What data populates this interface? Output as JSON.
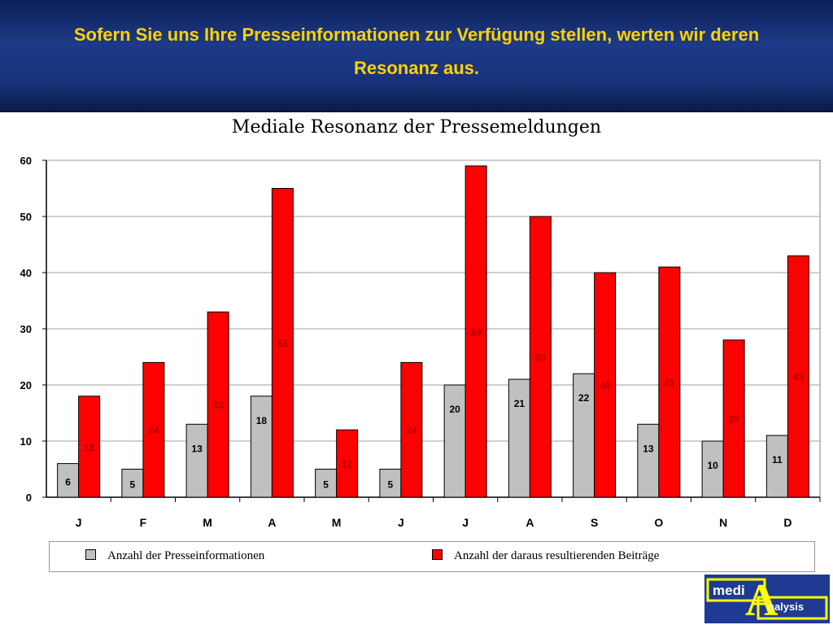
{
  "header": {
    "title": "Sofern Sie uns Ihre Presseinformationen zur Verfügung stellen, werten wir deren Resonanz aus."
  },
  "logo": {
    "word1": "medi",
    "big_letter": "A",
    "word2": "nalysis"
  },
  "colors": {
    "header_bg": "#1d3a86",
    "header_text": "#ffd200",
    "series_gray": "#c0c0c0",
    "series_red": "#ff0000"
  },
  "chart_data": {
    "type": "bar",
    "title": "Mediale Resonanz der Pressemeldungen",
    "categories": [
      "J",
      "F",
      "M",
      "A",
      "M",
      "J",
      "J",
      "A",
      "S",
      "O",
      "N",
      "D"
    ],
    "series": [
      {
        "name": "Anzahl der Presseinformationen",
        "color": "#c0c0c0",
        "values": [
          6,
          5,
          13,
          18,
          5,
          5,
          20,
          21,
          22,
          13,
          10,
          11
        ]
      },
      {
        "name": "Anzahl der daraus resultierenden Beiträge",
        "color": "#ff0000",
        "values": [
          18,
          24,
          33,
          55,
          12,
          24,
          59,
          50,
          40,
          41,
          28,
          43
        ]
      }
    ],
    "ylim": [
      0,
      60
    ],
    "yticks": [
      0,
      10,
      20,
      30,
      40,
      50,
      60
    ],
    "grid": true,
    "legend": "bottom"
  }
}
